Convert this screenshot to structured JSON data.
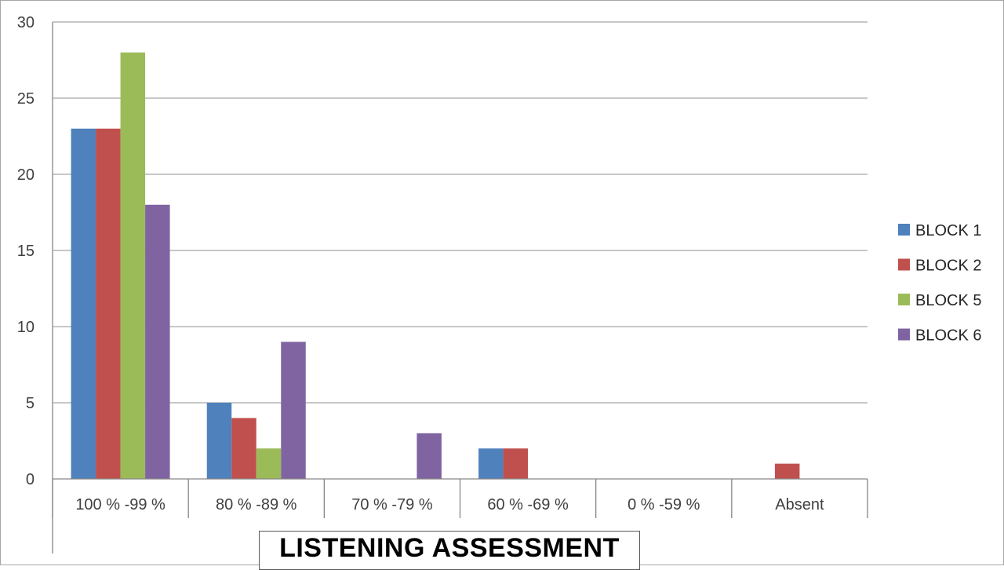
{
  "chart_data": {
    "type": "bar",
    "title": "LISTENING ASSESSMENT",
    "xlabel": "",
    "ylabel": "",
    "categories": [
      "100 % -99 %",
      "80 % -89 %",
      "70 % -79 %",
      "60 % -69 %",
      "0 % -59 %",
      "Absent"
    ],
    "ylim": [
      0,
      30
    ],
    "yticks": [
      0,
      5,
      10,
      15,
      20,
      25,
      30
    ],
    "grid": true,
    "legend_position": "right",
    "series": [
      {
        "name": "BLOCK 1",
        "color": "#4f81bd",
        "values": [
          23,
          5,
          0,
          2,
          0,
          0
        ]
      },
      {
        "name": "BLOCK 2",
        "color": "#c0504d",
        "values": [
          23,
          4,
          0,
          2,
          0,
          1
        ]
      },
      {
        "name": "BLOCK 5",
        "color": "#9bbb59",
        "values": [
          28,
          2,
          0,
          0,
          0,
          0
        ]
      },
      {
        "name": "BLOCK 6",
        "color": "#8064a2",
        "values": [
          18,
          9,
          3,
          0,
          0,
          0
        ]
      }
    ]
  }
}
